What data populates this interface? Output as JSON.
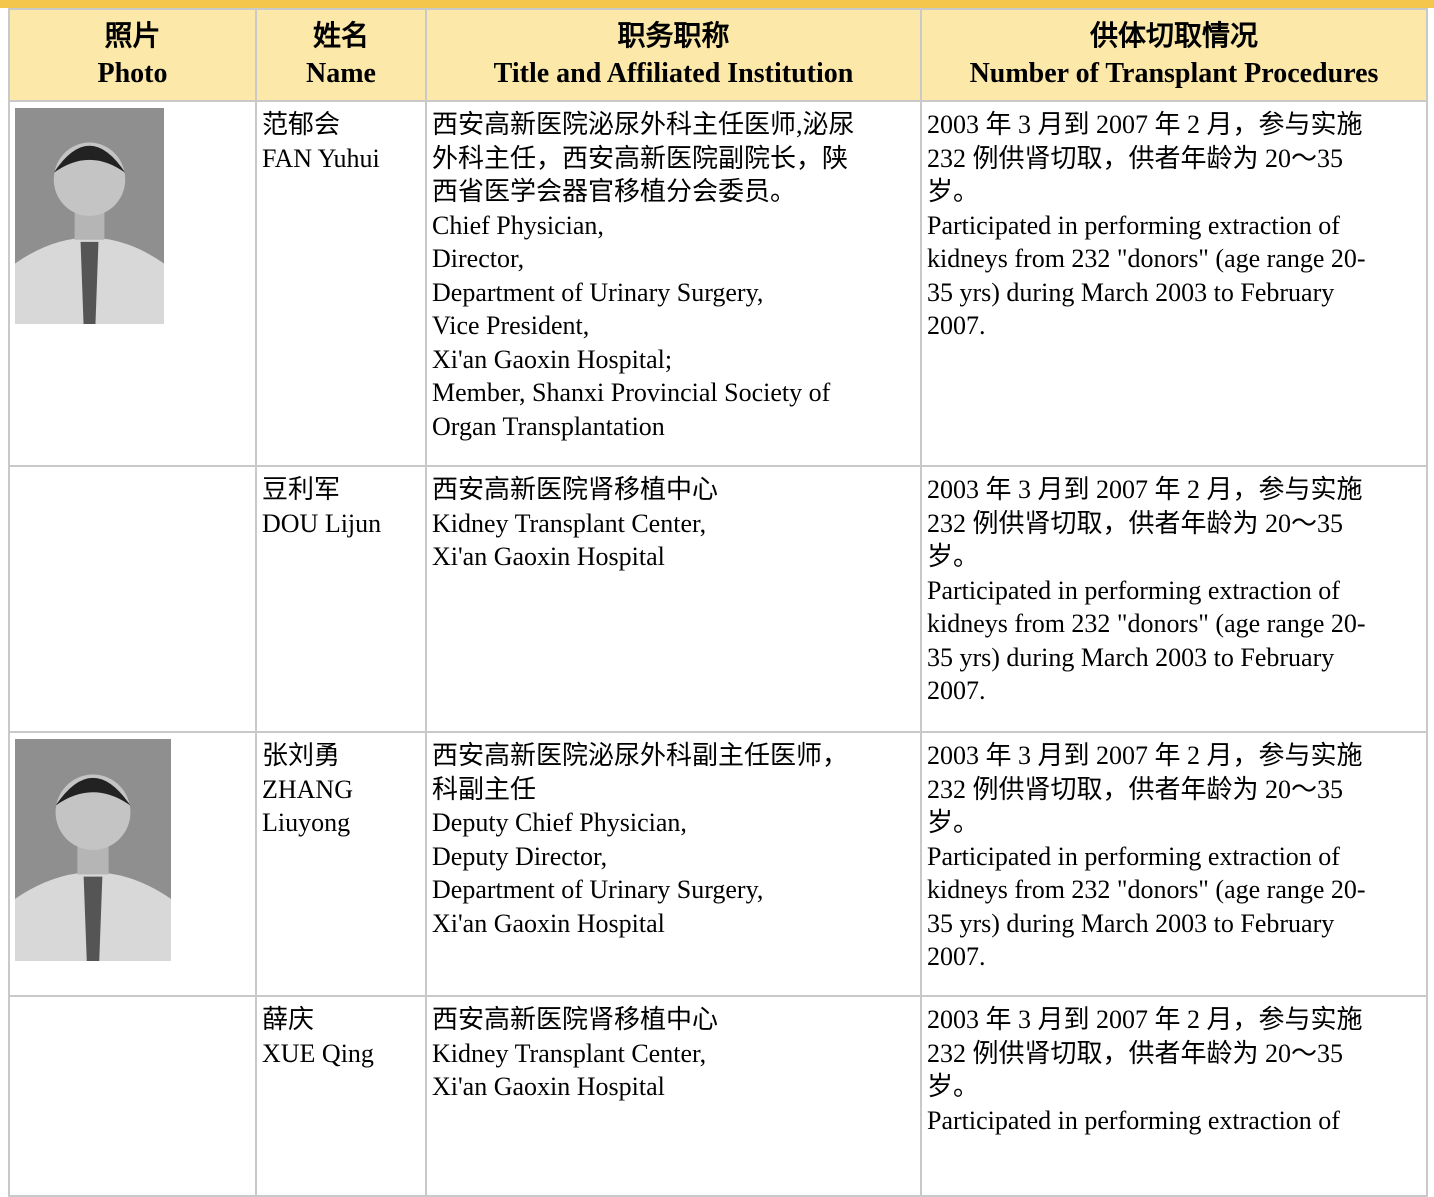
{
  "table": {
    "header": [
      {
        "cn": "照片",
        "en": "Photo"
      },
      {
        "cn": "姓名",
        "en": "Name"
      },
      {
        "cn": "职务职称",
        "en": "Title and Affiliated Institution"
      },
      {
        "cn": "供体切取情况",
        "en": "Number of Transplant Procedures"
      }
    ],
    "rows": [
      {
        "name": [
          "范郁会",
          "FAN Yuhui"
        ],
        "title": [
          "西安高新医院泌尿外科主任医师,泌尿",
          "外科主任，西安高新医院副院长，陕",
          "西省医学会器官移植分会委员。",
          "Chief Physician,",
          "Director,",
          "Department of Urinary Surgery,",
          "Vice President,",
          "Xi'an Gaoxin Hospital;",
          "Member, Shanxi Provincial Society of",
          "Organ Transplantation"
        ],
        "procedures": [
          "2003 年 3 月到 2007 年 2 月，参与实施",
          "232 例供肾切取，供者年龄为 20～35",
          "岁。",
          "Participated in performing extraction of",
          "kidneys from 232 \"donors\" (age range 20-",
          "35 yrs) during March 2003 to February",
          "2007."
        ]
      },
      {
        "name": [
          "豆利军",
          "DOU Lijun"
        ],
        "title": [
          "西安高新医院肾移植中心",
          "Kidney Transplant Center,",
          "Xi'an Gaoxin Hospital"
        ],
        "procedures": [
          "2003 年 3 月到 2007 年 2 月，参与实施",
          "232 例供肾切取，供者年龄为 20～35",
          "岁。",
          "Participated in performing extraction of",
          "kidneys from 232 \"donors\" (age range 20-",
          "35 yrs) during March 2003 to February",
          "2007."
        ]
      },
      {
        "name": [
          "张刘勇",
          "ZHANG",
          "Liuyong"
        ],
        "title": [
          "西安高新医院泌尿外科副主任医师，",
          "科副主任",
          "Deputy Chief Physician,",
          "Deputy Director,",
          "Department of Urinary Surgery,",
          "Xi'an Gaoxin Hospital"
        ],
        "procedures": [
          "2003 年 3 月到 2007 年 2 月，参与实施",
          "232 例供肾切取，供者年龄为 20～35",
          "岁。",
          "Participated in performing extraction of",
          "kidneys from 232 \"donors\" (age range 20-",
          "35 yrs) during March 2003 to February",
          "2007."
        ]
      },
      {
        "name": [
          "薛庆",
          "XUE Qing"
        ],
        "title": [
          "西安高新医院肾移植中心",
          "Kidney Transplant Center,",
          "Xi'an Gaoxin Hospital"
        ],
        "procedures": [
          "2003 年 3 月到 2007 年 2 月，参与实施",
          "232 例供肾切取，供者年龄为 20～35",
          "岁。",
          "Participated in performing extraction of"
        ]
      }
    ]
  }
}
